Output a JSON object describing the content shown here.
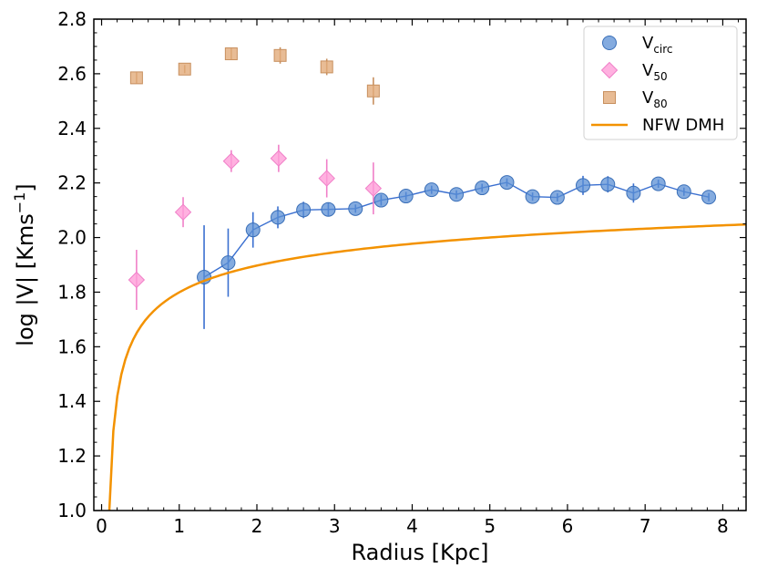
{
  "chart_data": {
    "type": "scatter",
    "xlabel": "Radius [Kpc]",
    "ylabel": "log |V| [Kms",
    "ylabel_sup": "−1",
    "ylabel_end": "]",
    "xlim": [
      -0.1,
      8.3
    ],
    "ylim": [
      1.0,
      2.8
    ],
    "xticks": [
      0,
      1,
      2,
      3,
      4,
      5,
      6,
      7,
      8
    ],
    "yticks": [
      1.0,
      1.2,
      1.4,
      1.6,
      1.8,
      2.0,
      2.2,
      2.4,
      2.6,
      2.8
    ],
    "xtick_labels": [
      "0",
      "1",
      "2",
      "3",
      "4",
      "5",
      "6",
      "7",
      "8"
    ],
    "ytick_labels": [
      "1.0",
      "1.2",
      "1.4",
      "1.6",
      "1.8",
      "2.0",
      "2.2",
      "2.4",
      "2.6",
      "2.8"
    ],
    "legend_position": "top-right",
    "series": [
      {
        "name": "V",
        "name_sub": "circ",
        "marker": "circle",
        "color": "#5b8fd4",
        "edge": "#3a6fb8",
        "line": true,
        "x": [
          1.32,
          1.63,
          1.95,
          2.27,
          2.6,
          2.92,
          3.27,
          3.6,
          3.92,
          4.25,
          4.57,
          4.9,
          5.22,
          5.55,
          5.87,
          6.2,
          6.52,
          6.85,
          7.17,
          7.5,
          7.82
        ],
        "y": [
          1.855,
          1.908,
          2.028,
          2.074,
          2.101,
          2.103,
          2.106,
          2.137,
          2.152,
          2.175,
          2.158,
          2.182,
          2.202,
          2.15,
          2.147,
          2.191,
          2.195,
          2.163,
          2.197,
          2.168,
          2.148
        ],
        "yerr": [
          0.19,
          0.125,
          0.065,
          0.04,
          0.03,
          0.025,
          0.015,
          0.02,
          0.015,
          0.015,
          0.015,
          0.015,
          0.015,
          0.015,
          0.015,
          0.035,
          0.03,
          0.035,
          0.015,
          0.015,
          0.015
        ]
      },
      {
        "name": "V",
        "name_sub": "50",
        "marker": "diamond",
        "color": "#ff9ed8",
        "edge": "#f07fc8",
        "line": false,
        "x": [
          0.45,
          1.05,
          1.67,
          2.28,
          2.9,
          3.5
        ],
        "y": [
          1.845,
          2.093,
          2.28,
          2.29,
          2.217,
          2.18
        ],
        "yerr": [
          0.11,
          0.055,
          0.04,
          0.05,
          0.07,
          0.095
        ]
      },
      {
        "name": "V",
        "name_sub": "80",
        "marker": "square",
        "color": "#e2ab7a",
        "edge": "#c8905f",
        "line": false,
        "x": [
          0.45,
          1.07,
          1.67,
          2.3,
          2.9,
          3.5
        ],
        "y": [
          2.585,
          2.617,
          2.673,
          2.667,
          2.625,
          2.537
        ],
        "yerr": [
          0.02,
          0.015,
          0.02,
          0.03,
          0.03,
          0.05
        ]
      },
      {
        "name": "NFW DMH",
        "name_sub": "",
        "marker": "none",
        "color": "#f39200",
        "line": true,
        "curve": {
          "formula": "log10(a + b*ln(x))",
          "a": 63.0,
          "b": 23.0,
          "x_start": 0.1,
          "x_end": 8.3,
          "samples": 160
        }
      }
    ]
  }
}
